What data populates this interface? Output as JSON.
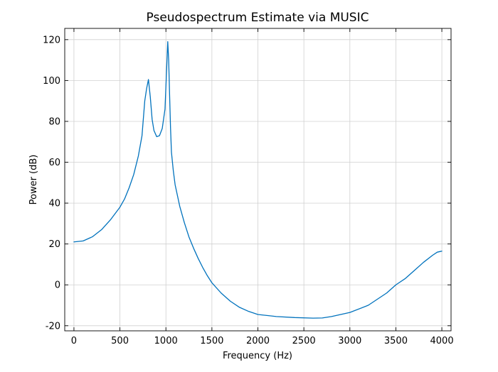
{
  "chart_data": {
    "type": "line",
    "title": "Pseudospectrum Estimate via MUSIC",
    "xlabel": "Frequency (Hz)",
    "ylabel": "Power (dB)",
    "xlim": [
      -100,
      4100
    ],
    "ylim": [
      -22.5,
      125.5
    ],
    "xticks": [
      0,
      500,
      1000,
      1500,
      2000,
      2500,
      3000,
      3500,
      4000
    ],
    "yticks": [
      -20,
      0,
      20,
      40,
      60,
      80,
      100,
      120
    ],
    "grid": true,
    "line_color": "#0072BD",
    "series": [
      {
        "x": [
          0,
          100,
          200,
          300,
          400,
          500,
          550,
          600,
          650,
          700,
          740,
          770,
          790,
          810,
          830,
          850,
          870,
          900,
          930,
          960,
          990,
          1010,
          1020,
          1030,
          1040,
          1050,
          1060,
          1080,
          1100,
          1150,
          1200,
          1250,
          1300,
          1350,
          1400,
          1450,
          1500,
          1600,
          1700,
          1800,
          1900,
          2000,
          2200,
          2400,
          2600,
          2700,
          2800,
          3000,
          3200,
          3400,
          3500,
          3600,
          3700,
          3800,
          3900,
          3950,
          3980,
          4000
        ],
        "values": [
          21,
          21.5,
          23.5,
          27,
          32,
          38,
          42,
          47.5,
          54,
          63,
          73,
          90,
          96,
          100.5,
          92,
          81,
          75.5,
          72.5,
          73,
          76.5,
          86,
          108,
          119,
          110,
          93,
          77,
          65,
          56,
          49,
          38.5,
          30.5,
          23.5,
          18,
          13,
          8.5,
          4.5,
          1,
          -4,
          -8,
          -11,
          -13,
          -14.5,
          -15.5,
          -16,
          -16.3,
          -16.2,
          -15.5,
          -13.5,
          -10,
          -4,
          0,
          3,
          7,
          11,
          14.5,
          16,
          16.3,
          16.5
        ]
      }
    ]
  }
}
